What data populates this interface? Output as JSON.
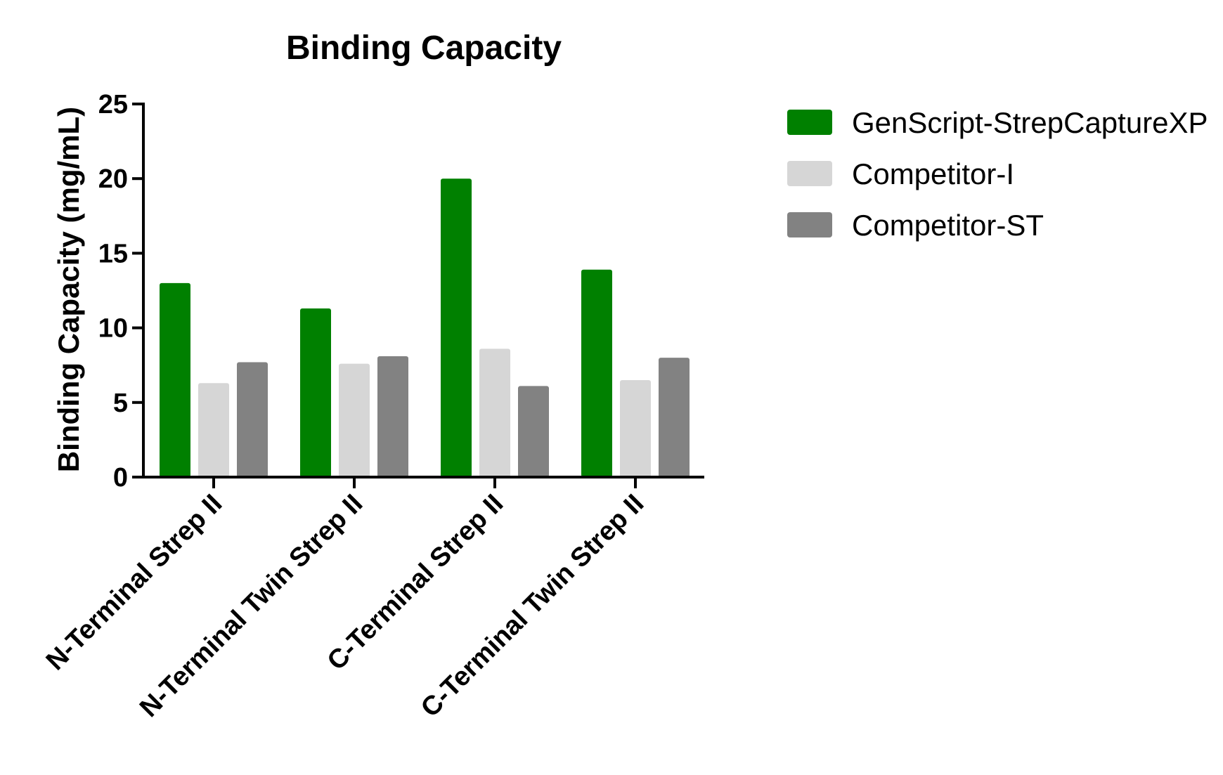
{
  "chart_data": {
    "type": "bar",
    "title": "Binding Capacity",
    "xlabel": "",
    "ylabel": "Binding Capacity (mg/mL)",
    "ylim": [
      0,
      25
    ],
    "yticks": [
      0,
      5,
      10,
      15,
      20,
      25
    ],
    "categories": [
      "N-Terminal Strep II",
      "N-Terminal Twin Strep II",
      "C-Terminal Strep II",
      "C-Terminal Twin Strep II"
    ],
    "series": [
      {
        "name": "GenScript-StrepCaptureXP",
        "color": "#008000",
        "values": [
          13.0,
          11.3,
          20.0,
          13.9
        ]
      },
      {
        "name": "Competitor-I",
        "color": "#d6d6d6",
        "values": [
          6.3,
          7.6,
          8.6,
          6.5
        ]
      },
      {
        "name": "Competitor-ST",
        "color": "#828282",
        "values": [
          7.7,
          8.1,
          6.1,
          8.0
        ]
      }
    ],
    "legend_position": "top-right",
    "grid": false
  }
}
